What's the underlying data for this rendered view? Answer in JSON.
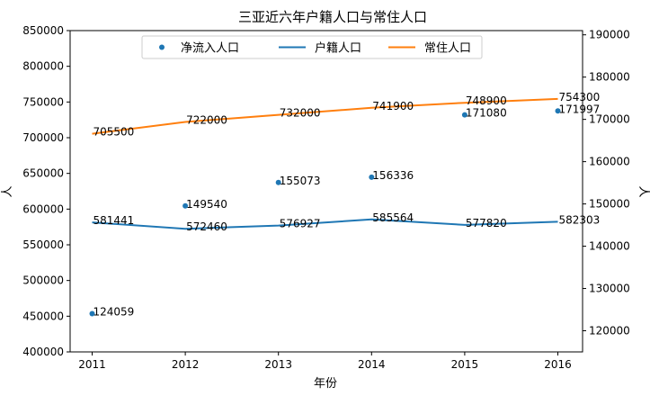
{
  "chart_data": {
    "type": "line",
    "title": "三亚近六年户籍人口与常住人口",
    "xlabel": "年份",
    "ylabel_left": "人",
    "ylabel_right": "人",
    "categories": [
      "2011",
      "2012",
      "2013",
      "2014",
      "2015",
      "2016"
    ],
    "ylim_left": [
      400000,
      850000
    ],
    "yticks_left": [
      "400000",
      "450000",
      "500000",
      "550000",
      "600000",
      "650000",
      "700000",
      "750000",
      "800000",
      "850000"
    ],
    "ylim_right": [
      115000,
      191000
    ],
    "yticks_right": [
      "120000",
      "130000",
      "140000",
      "150000",
      "160000",
      "170000",
      "180000",
      "190000"
    ],
    "grid": false,
    "legend_placement": "top-center",
    "series": [
      {
        "name": "净流入人口",
        "kind": "scatter",
        "axis": "right",
        "color": "#1f77b4",
        "values": [
          124059,
          149540,
          155073,
          156336,
          171080,
          171997
        ],
        "labels": [
          "124059",
          "149540",
          "155073",
          "156336",
          "171080",
          "171997"
        ]
      },
      {
        "name": "户籍人口",
        "kind": "line",
        "axis": "left",
        "color": "#1f77b4",
        "values": [
          581441,
          572460,
          576927,
          585564,
          577820,
          582303
        ],
        "labels": [
          "581441",
          "572460",
          "576927",
          "585564",
          "577820",
          "582303"
        ]
      },
      {
        "name": "常住人口",
        "kind": "line",
        "axis": "left",
        "color": "#ff7f0e",
        "values": [
          705500,
          722000,
          732000,
          741900,
          748900,
          754300
        ],
        "labels": [
          "705500",
          "722000",
          "732000",
          "741900",
          "748900",
          "754300"
        ]
      }
    ]
  }
}
